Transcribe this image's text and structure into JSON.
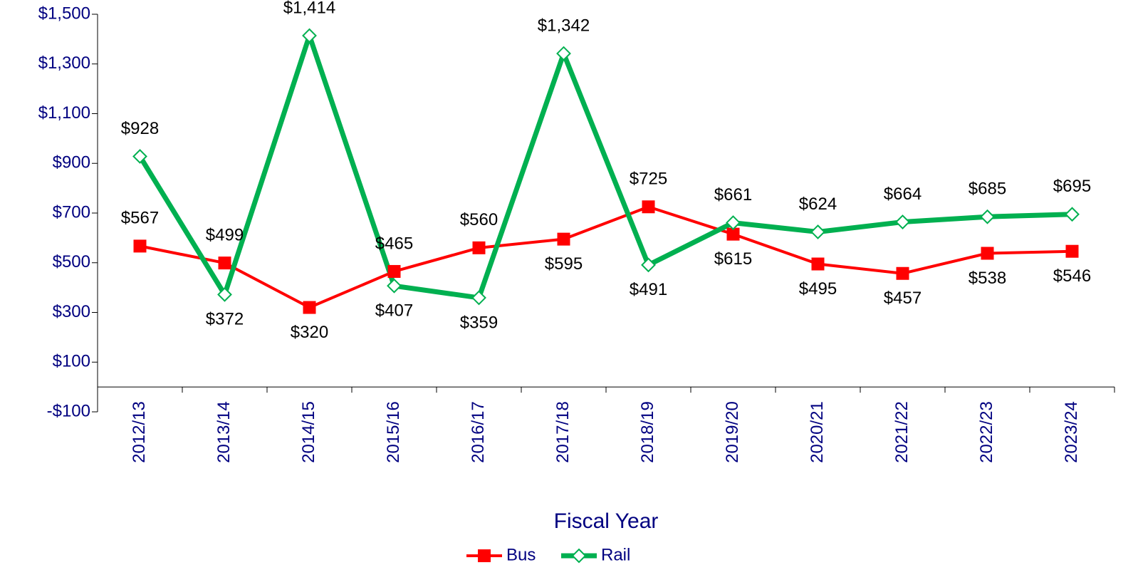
{
  "chart_data": {
    "type": "line",
    "x_label": "Fiscal Year",
    "categories": [
      "2012/13",
      "2013/14",
      "2014/15",
      "2015/16",
      "2016/17",
      "2017/18",
      "2018/19",
      "2019/20",
      "2020/21",
      "2021/22",
      "2022/23",
      "2023/24"
    ],
    "series": [
      {
        "name": "Bus",
        "color": "#ff0000",
        "marker": "square",
        "values": [
          567,
          499,
          320,
          465,
          560,
          595,
          725,
          615,
          495,
          457,
          538,
          546
        ],
        "value_labels": [
          "$567",
          "$499",
          "$320",
          "$465",
          "$560",
          "$595",
          "$725",
          "$615",
          "$495",
          "$457",
          "$538",
          "$546"
        ]
      },
      {
        "name": "Rail",
        "color": "#00b050",
        "marker": "diamond",
        "values": [
          928,
          372,
          1414,
          407,
          359,
          1342,
          491,
          661,
          624,
          664,
          685,
          695
        ],
        "value_labels": [
          "$928",
          "$372",
          "$1,414",
          "$407",
          "$359",
          "$1,342",
          "$491",
          "$661",
          "$624",
          "$664",
          "$685",
          "$695"
        ]
      }
    ],
    "ylim": [
      -100,
      1500
    ],
    "yticks": [
      {
        "value": -100,
        "label": "-$100"
      },
      {
        "value": 100,
        "label": "$100"
      },
      {
        "value": 300,
        "label": "$300"
      },
      {
        "value": 500,
        "label": "$500"
      },
      {
        "value": 700,
        "label": "$700"
      },
      {
        "value": 900,
        "label": "$900"
      },
      {
        "value": 1100,
        "label": "$1,100"
      },
      {
        "value": 1300,
        "label": "$1,300"
      },
      {
        "value": 1500,
        "label": "$1,500"
      }
    ],
    "legend": "bottom"
  }
}
